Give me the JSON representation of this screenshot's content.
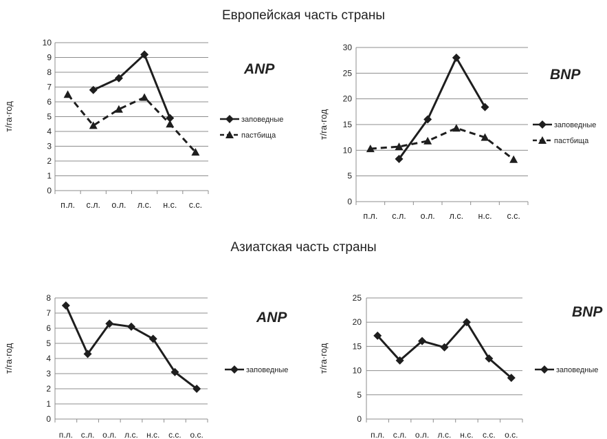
{
  "section_titles": [
    "Европейская часть страны",
    "Азиатская часть страны"
  ],
  "colors": {
    "line": "#1e1e1e",
    "grid": "#8c8c8c",
    "axis": "#8c8c8c"
  },
  "chart_data": [
    {
      "type": "line",
      "title": "ANP",
      "ylabel": "т/га·год",
      "categories": [
        "п.л.",
        "с.л.",
        "о.л.",
        "л.с.",
        "н.с.",
        "с.с."
      ],
      "ylim": [
        0,
        10
      ],
      "ytick_step": 1,
      "legend_position": "right",
      "series": [
        {
          "name": "заповедные",
          "marker": "diamond",
          "dash": false,
          "values": [
            null,
            6.8,
            7.6,
            9.2,
            4.9,
            null
          ]
        },
        {
          "name": "пастбища",
          "marker": "triangle",
          "dash": true,
          "values": [
            6.5,
            4.4,
            5.5,
            6.3,
            4.5,
            2.6
          ]
        }
      ]
    },
    {
      "type": "line",
      "title": "BNP",
      "ylabel": "т/га·год",
      "categories": [
        "п.л.",
        "с.л.",
        "о.л.",
        "л.с.",
        "н.с.",
        "с.с."
      ],
      "ylim": [
        0,
        30
      ],
      "ytick_step": 5,
      "legend_position": "right",
      "series": [
        {
          "name": "заповедные",
          "marker": "diamond",
          "dash": false,
          "values": [
            null,
            8.3,
            16,
            28,
            18.4,
            null
          ]
        },
        {
          "name": "пастбища",
          "marker": "triangle",
          "dash": true,
          "values": [
            10.3,
            10.7,
            11.8,
            14.3,
            12.5,
            8.2
          ]
        }
      ]
    },
    {
      "type": "line",
      "title": "ANP",
      "ylabel": "т/га·год",
      "categories": [
        "п.л.",
        "с.л.",
        "о.л.",
        "л.с.",
        "н.с.",
        "с.с.",
        "о.с."
      ],
      "ylim": [
        0,
        8
      ],
      "ytick_step": 1,
      "legend_position": "right",
      "series": [
        {
          "name": "заповедные",
          "marker": "diamond",
          "dash": false,
          "values": [
            7.5,
            4.3,
            6.3,
            6.1,
            5.3,
            3.1,
            2.0
          ]
        }
      ]
    },
    {
      "type": "line",
      "title": "BNP",
      "ylabel": "т/га·год",
      "categories": [
        "п.л.",
        "с.л.",
        "о.л.",
        "л.с.",
        "н.с.",
        "с.с.",
        "о.с."
      ],
      "ylim": [
        0,
        25
      ],
      "ytick_step": 5,
      "legend_position": "right",
      "series": [
        {
          "name": "заповедные",
          "marker": "diamond",
          "dash": false,
          "values": [
            17.2,
            12.1,
            16.1,
            14.8,
            20,
            12.5,
            8.5
          ]
        }
      ]
    }
  ]
}
